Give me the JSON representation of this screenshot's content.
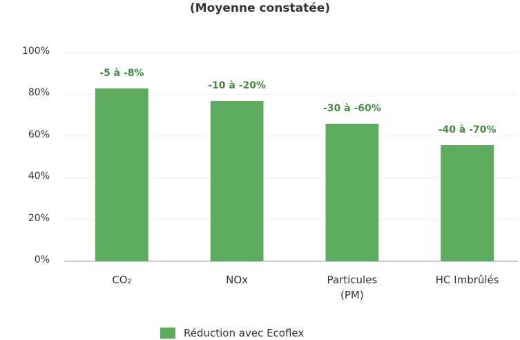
{
  "chart_data": {
    "type": "bar",
    "title": "(Moyenne constatée)",
    "categories": [
      "CO₂",
      "NOx",
      "Particules (PM)",
      "HC Imbrûlés"
    ],
    "series": [
      {
        "name": "Réduction avec Ecoflex",
        "color": "#5dab5f",
        "values": [
          82.8,
          76.8,
          65.9,
          55.6
        ]
      }
    ],
    "annotations": [
      "-5 à -8%",
      "-10 à -20%",
      "-30 à -60%",
      "-40 à -70%"
    ],
    "ylim": [
      0,
      100
    ],
    "yticks": [
      {
        "value": 0,
        "label": "0%"
      },
      {
        "value": 20,
        "label": "20%"
      },
      {
        "value": 40,
        "label": "40%"
      },
      {
        "value": 60,
        "label": "60%"
      },
      {
        "value": 80,
        "label": "80%"
      },
      {
        "value": 100,
        "label": "100%"
      }
    ],
    "grid": true
  }
}
